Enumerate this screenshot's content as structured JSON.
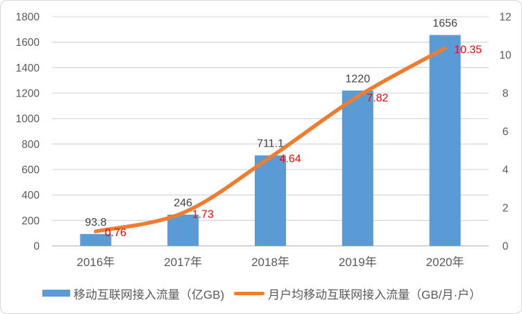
{
  "chart_data": {
    "type": "combo-bar-line",
    "title": "",
    "categories": [
      "2016年",
      "2017年",
      "2018年",
      "2019年",
      "2020年"
    ],
    "series": [
      {
        "name": "移动互联网接入流量（亿GB)",
        "type": "bar",
        "axis": "primary",
        "color": "#5B9BD5",
        "values": [
          93.8,
          246,
          711.1,
          1220,
          1656
        ],
        "data_labels": [
          "93.8",
          "246",
          "711.1",
          "1220",
          "1656"
        ],
        "data_label_color": "#404040"
      },
      {
        "name": "月户均移动互联网接入流量（GB/月·户）",
        "type": "line",
        "axis": "secondary",
        "color": "#ED7D31",
        "smooth": true,
        "values": [
          0.76,
          1.73,
          4.64,
          7.82,
          10.35
        ],
        "data_labels": [
          "0.76",
          "1.73",
          "4.64",
          "7.82",
          "10.35"
        ],
        "data_label_color": "#FF0000"
      }
    ],
    "primary_axis": {
      "min": 0,
      "max": 1800,
      "tick_step": 200,
      "tick_labels": [
        "0",
        "200",
        "400",
        "600",
        "800",
        "1000",
        "1200",
        "1400",
        "1600",
        "1800"
      ],
      "label_color": "#595959"
    },
    "secondary_axis": {
      "min": 0,
      "max": 12,
      "tick_step": 2,
      "tick_labels": [
        "0",
        "2",
        "4",
        "6",
        "8",
        "10",
        "12"
      ],
      "label_color": "#595959"
    },
    "category_axis": {
      "label_color": "#595959"
    },
    "gridlines": {
      "visible": true,
      "color": "#D9D9D9",
      "baseline_color": "#BFBFBF"
    },
    "legend": {
      "position": "bottom"
    }
  }
}
